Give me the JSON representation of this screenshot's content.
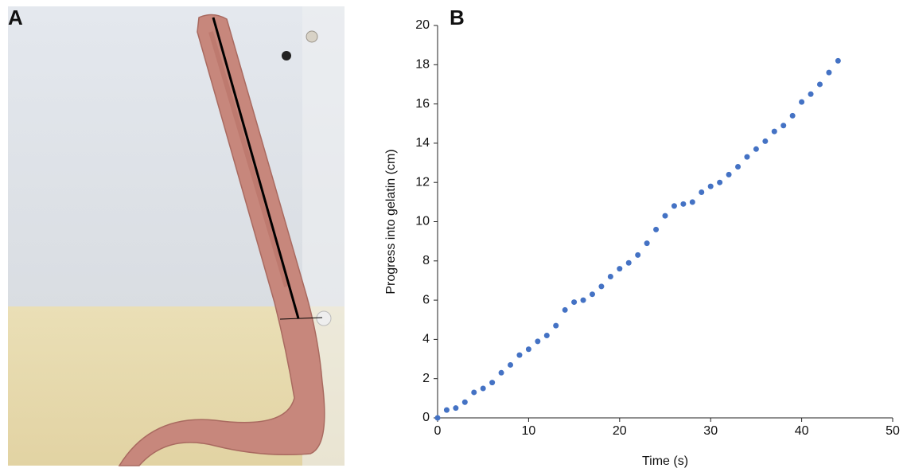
{
  "panel_a": {
    "label": "A"
  },
  "chart_data": {
    "type": "scatter",
    "panel_label": "B",
    "x_label": "Time (s)",
    "y_label": "Progress into gelatin (cm)",
    "xlim": [
      0,
      50
    ],
    "xticks": [
      0,
      10,
      20,
      30,
      40,
      50
    ],
    "ylim": [
      0,
      20
    ],
    "yticks": [
      0,
      2,
      4,
      6,
      8,
      10,
      12,
      14,
      16,
      18,
      20
    ],
    "grid": false,
    "color": "#4472c4",
    "x": [
      0,
      1,
      2,
      3,
      4,
      5,
      6,
      7,
      8,
      9,
      10,
      11,
      12,
      13,
      14,
      15,
      16,
      17,
      18,
      19,
      20,
      21,
      22,
      23,
      24,
      25,
      26,
      27,
      28,
      29,
      30,
      31,
      32,
      33,
      34,
      35,
      36,
      37,
      38,
      39,
      40,
      41,
      42,
      43,
      44
    ],
    "y": [
      0,
      0.4,
      0.5,
      0.8,
      1.3,
      1.5,
      1.8,
      2.3,
      2.7,
      3.2,
      3.5,
      3.9,
      4.2,
      4.7,
      5.5,
      5.9,
      6.0,
      6.3,
      6.7,
      7.2,
      7.6,
      7.9,
      8.3,
      8.9,
      9.6,
      10.3,
      10.8,
      10.9,
      11.0,
      11.5,
      11.8,
      12.0,
      12.4,
      12.8,
      13.3,
      13.7,
      14.1,
      14.6,
      14.9,
      15.4,
      16.1,
      16.5,
      17.0,
      17.6,
      18.2
    ]
  }
}
